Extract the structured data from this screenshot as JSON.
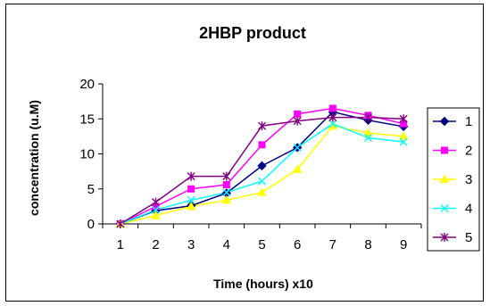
{
  "chart_data": {
    "type": "line",
    "title": "2HBP product",
    "xlabel": "Time (hours) x10",
    "ylabel": "concentration (u.M)",
    "categories": [
      "1",
      "2",
      "3",
      "4",
      "5",
      "6",
      "7",
      "8",
      "9"
    ],
    "ylim": [
      0,
      20
    ],
    "yticks": [
      "0",
      "5",
      "10",
      "15",
      "20"
    ],
    "grid": false,
    "legend_position": "right",
    "series": [
      {
        "name": "1",
        "color": "#000080",
        "marker": "diamond",
        "values": [
          0,
          1.9,
          2.6,
          4.4,
          8.3,
          10.9,
          16.0,
          14.8,
          13.9
        ]
      },
      {
        "name": "2",
        "color": "#FF00FF",
        "marker": "square",
        "values": [
          0,
          2.5,
          5.0,
          5.6,
          11.3,
          15.7,
          16.5,
          15.5,
          14.3
        ]
      },
      {
        "name": "3",
        "color": "#FFFF00",
        "marker": "triangle",
        "values": [
          0,
          1.2,
          2.5,
          3.4,
          4.5,
          7.8,
          14.0,
          13.0,
          12.5
        ]
      },
      {
        "name": "4",
        "color": "#00FFFF",
        "marker": "x",
        "values": [
          0,
          2.0,
          3.4,
          4.5,
          6.1,
          10.9,
          14.3,
          12.3,
          11.7
        ]
      },
      {
        "name": "5",
        "color": "#800080",
        "marker": "star",
        "values": [
          0,
          3.1,
          6.8,
          6.8,
          14.0,
          14.7,
          15.2,
          15.2,
          15.0
        ]
      }
    ]
  }
}
